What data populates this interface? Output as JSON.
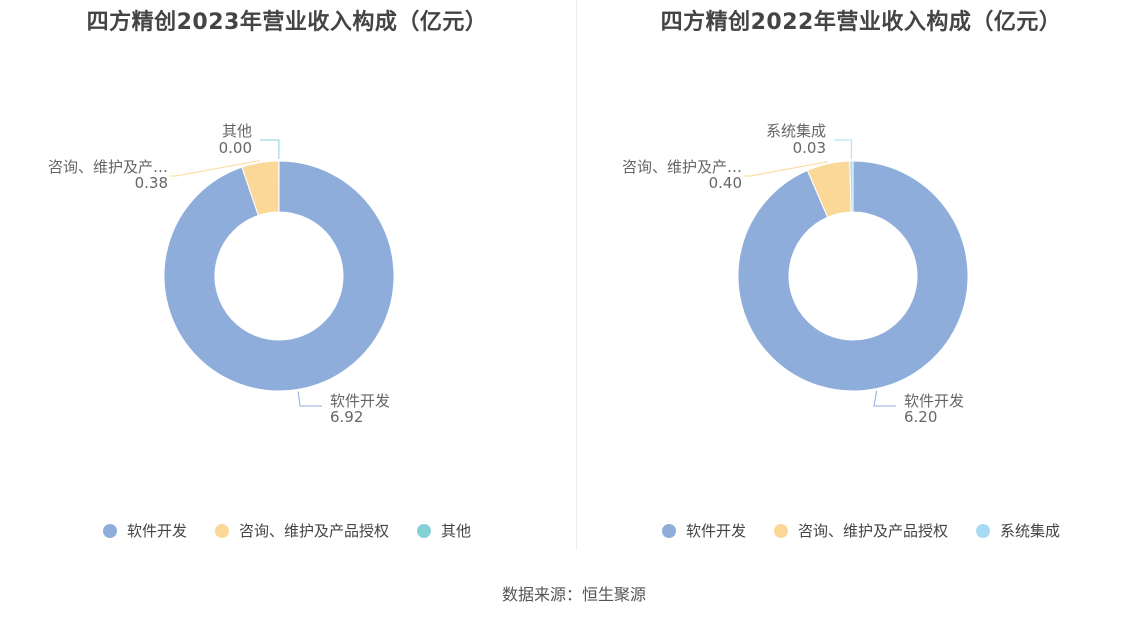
{
  "source": "数据来源：恒生聚源",
  "chart_data": [
    {
      "type": "pie",
      "title": "四方精创2023年营业收入构成（亿元）",
      "categories": [
        "软件开发",
        "咨询、维护及产品授权",
        "其他"
      ],
      "values": [
        6.92,
        0.38,
        0.0
      ],
      "value_labels": [
        "6.92",
        "0.38",
        "0.00"
      ],
      "slice_labels": [
        "软件开发",
        "咨询、维护及产…",
        "其他"
      ],
      "colors": [
        "#8eaddb",
        "#fbd897",
        "#85d1d8"
      ],
      "legend_position": "bottom"
    },
    {
      "type": "pie",
      "title": "四方精创2022年营业收入构成（亿元）",
      "categories": [
        "软件开发",
        "咨询、维护及产品授权",
        "系统集成"
      ],
      "values": [
        6.2,
        0.4,
        0.03
      ],
      "value_labels": [
        "6.20",
        "0.40",
        "0.03"
      ],
      "slice_labels": [
        "软件开发",
        "咨询、维护及产…",
        "系统集成"
      ],
      "colors": [
        "#8eaddb",
        "#fbd897",
        "#a7dbf5"
      ],
      "legend_position": "bottom"
    }
  ]
}
